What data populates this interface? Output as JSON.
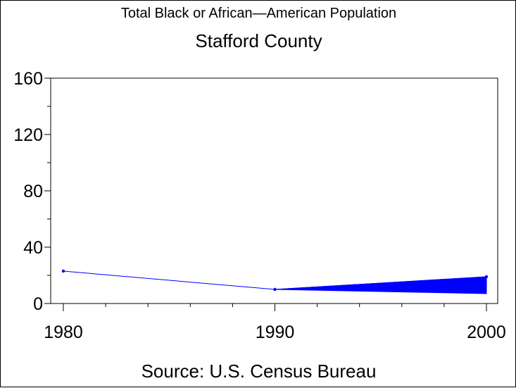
{
  "chart_data": {
    "type": "line",
    "title": "Total Black or African—American Population",
    "subtitle": "Stafford County",
    "source": "Source: U.S. Census Bureau",
    "xlabel": "",
    "ylabel": "",
    "x_ticks": [
      "1980",
      "1990",
      "2000"
    ],
    "y_ticks": [
      "0",
      "40",
      "80",
      "120",
      "160"
    ],
    "xlim": [
      1980,
      2000
    ],
    "ylim": [
      0,
      160
    ],
    "series": [
      {
        "x": [
          1980,
          1990,
          2000
        ],
        "y": [
          23,
          10,
          19
        ],
        "color": "#0000ff"
      }
    ],
    "shaded_band": {
      "x": [
        1990,
        2000
      ],
      "upper": [
        10,
        19
      ],
      "lower": [
        10,
        7
      ],
      "color": "#0000ff"
    },
    "grid": false
  }
}
